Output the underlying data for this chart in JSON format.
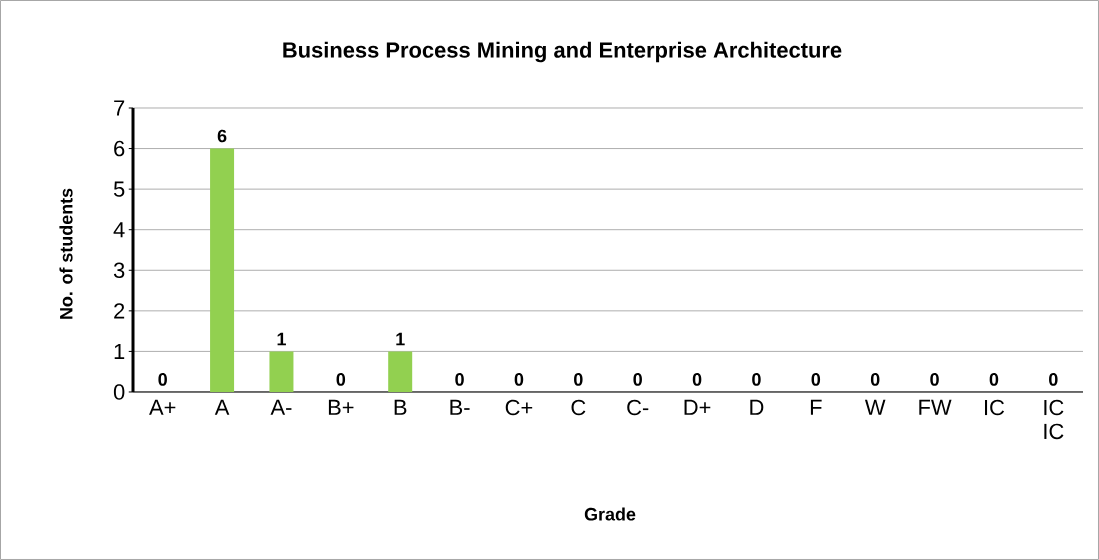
{
  "chart_data": {
    "type": "bar",
    "title": "Business Process Mining and Enterprise Architecture",
    "xlabel": "Grade",
    "ylabel": "No. of students",
    "categories": [
      "A+",
      "A",
      "A-",
      "B+",
      "B",
      "B-",
      "C+",
      "C",
      "C-",
      "D+",
      "D",
      "F",
      "W",
      "FW",
      "IC",
      "IC IC"
    ],
    "values": [
      0,
      6,
      1,
      0,
      1,
      0,
      0,
      0,
      0,
      0,
      0,
      0,
      0,
      0,
      0,
      0
    ],
    "color": "#92d050",
    "ylim": [
      0,
      7
    ],
    "yticks": [
      0,
      1,
      2,
      3,
      4,
      5,
      6,
      7
    ],
    "grid": "y",
    "data_labels": true
  }
}
